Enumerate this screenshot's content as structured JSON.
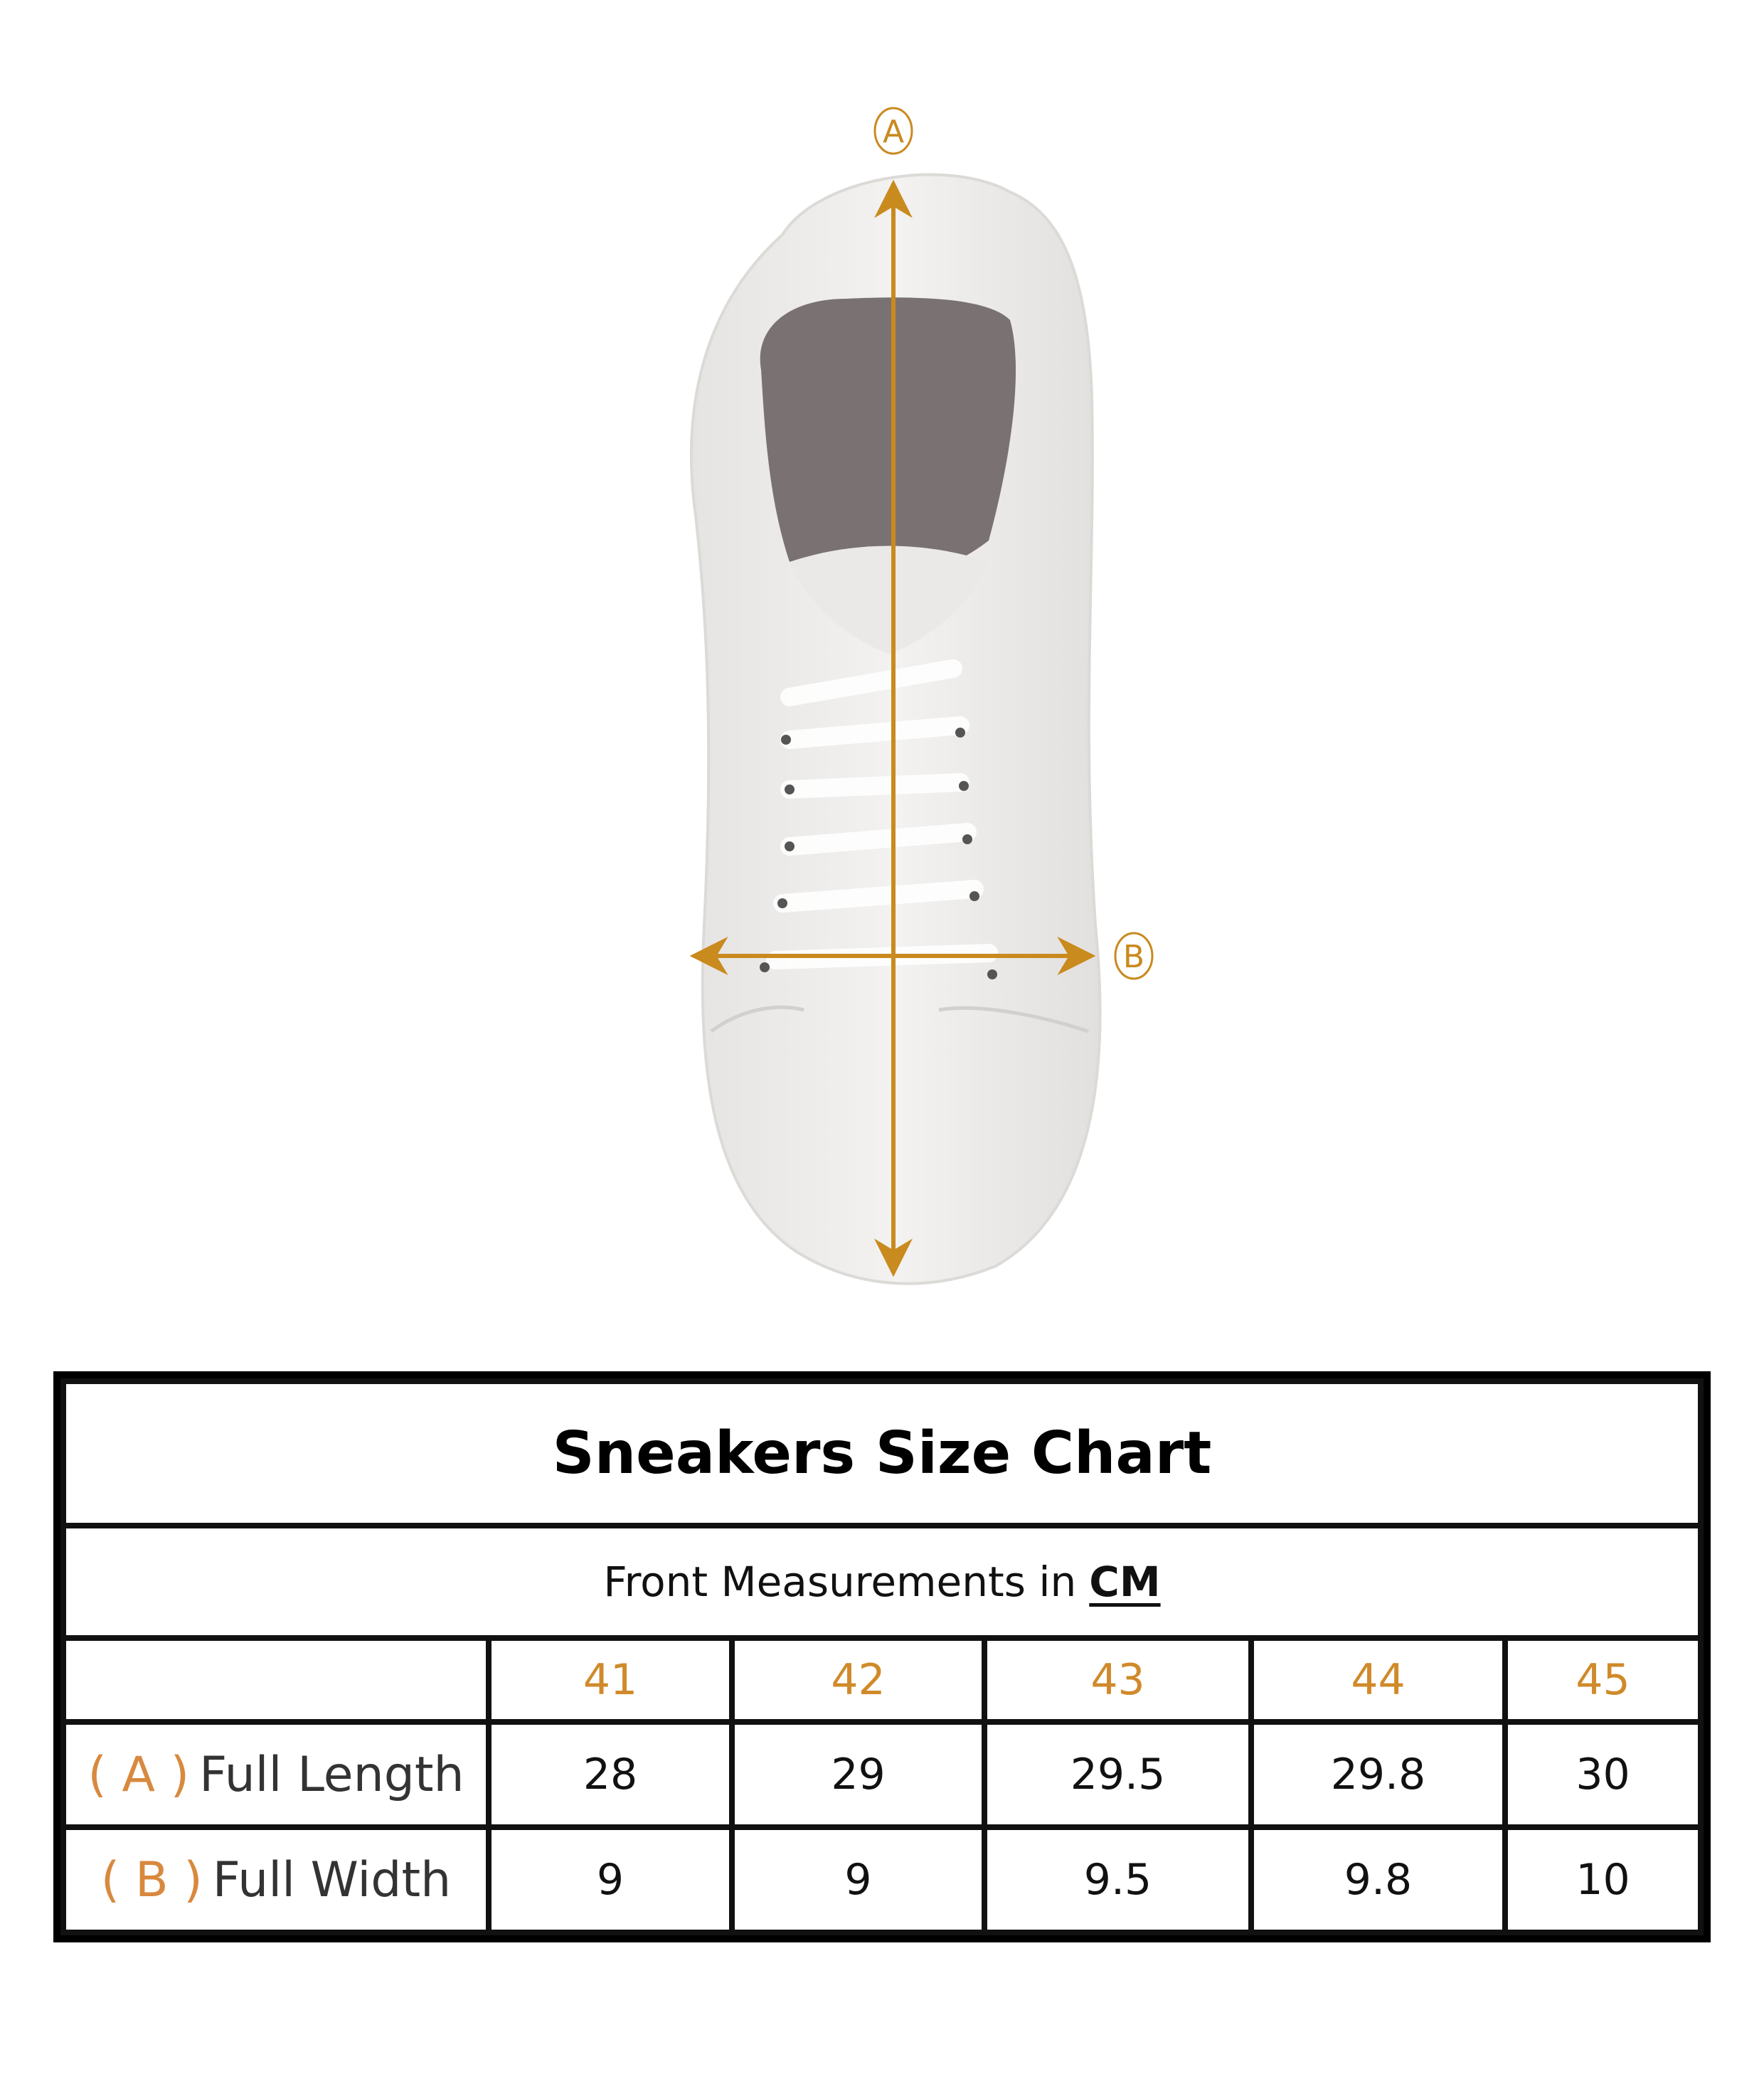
{
  "diagram": {
    "markers": {
      "length": "A",
      "width": "B"
    },
    "arrow_color": "#c98a1e"
  },
  "table": {
    "title": "Sneakers Size Chart",
    "subtitle": "Front Measurements in",
    "unit": "CM",
    "sizes": [
      "41",
      "42",
      "43",
      "44",
      "45"
    ],
    "rows": [
      {
        "marker": "( A )",
        "label": "Full Length",
        "values": [
          "28",
          "29",
          "29.5",
          "29.8",
          "30"
        ]
      },
      {
        "marker": "( B )",
        "label": "Full Width",
        "values": [
          "9",
          "9",
          "9.5",
          "9.8",
          "10"
        ]
      }
    ],
    "size_color": "#d08a2a",
    "marker_color": "#d8893f"
  }
}
